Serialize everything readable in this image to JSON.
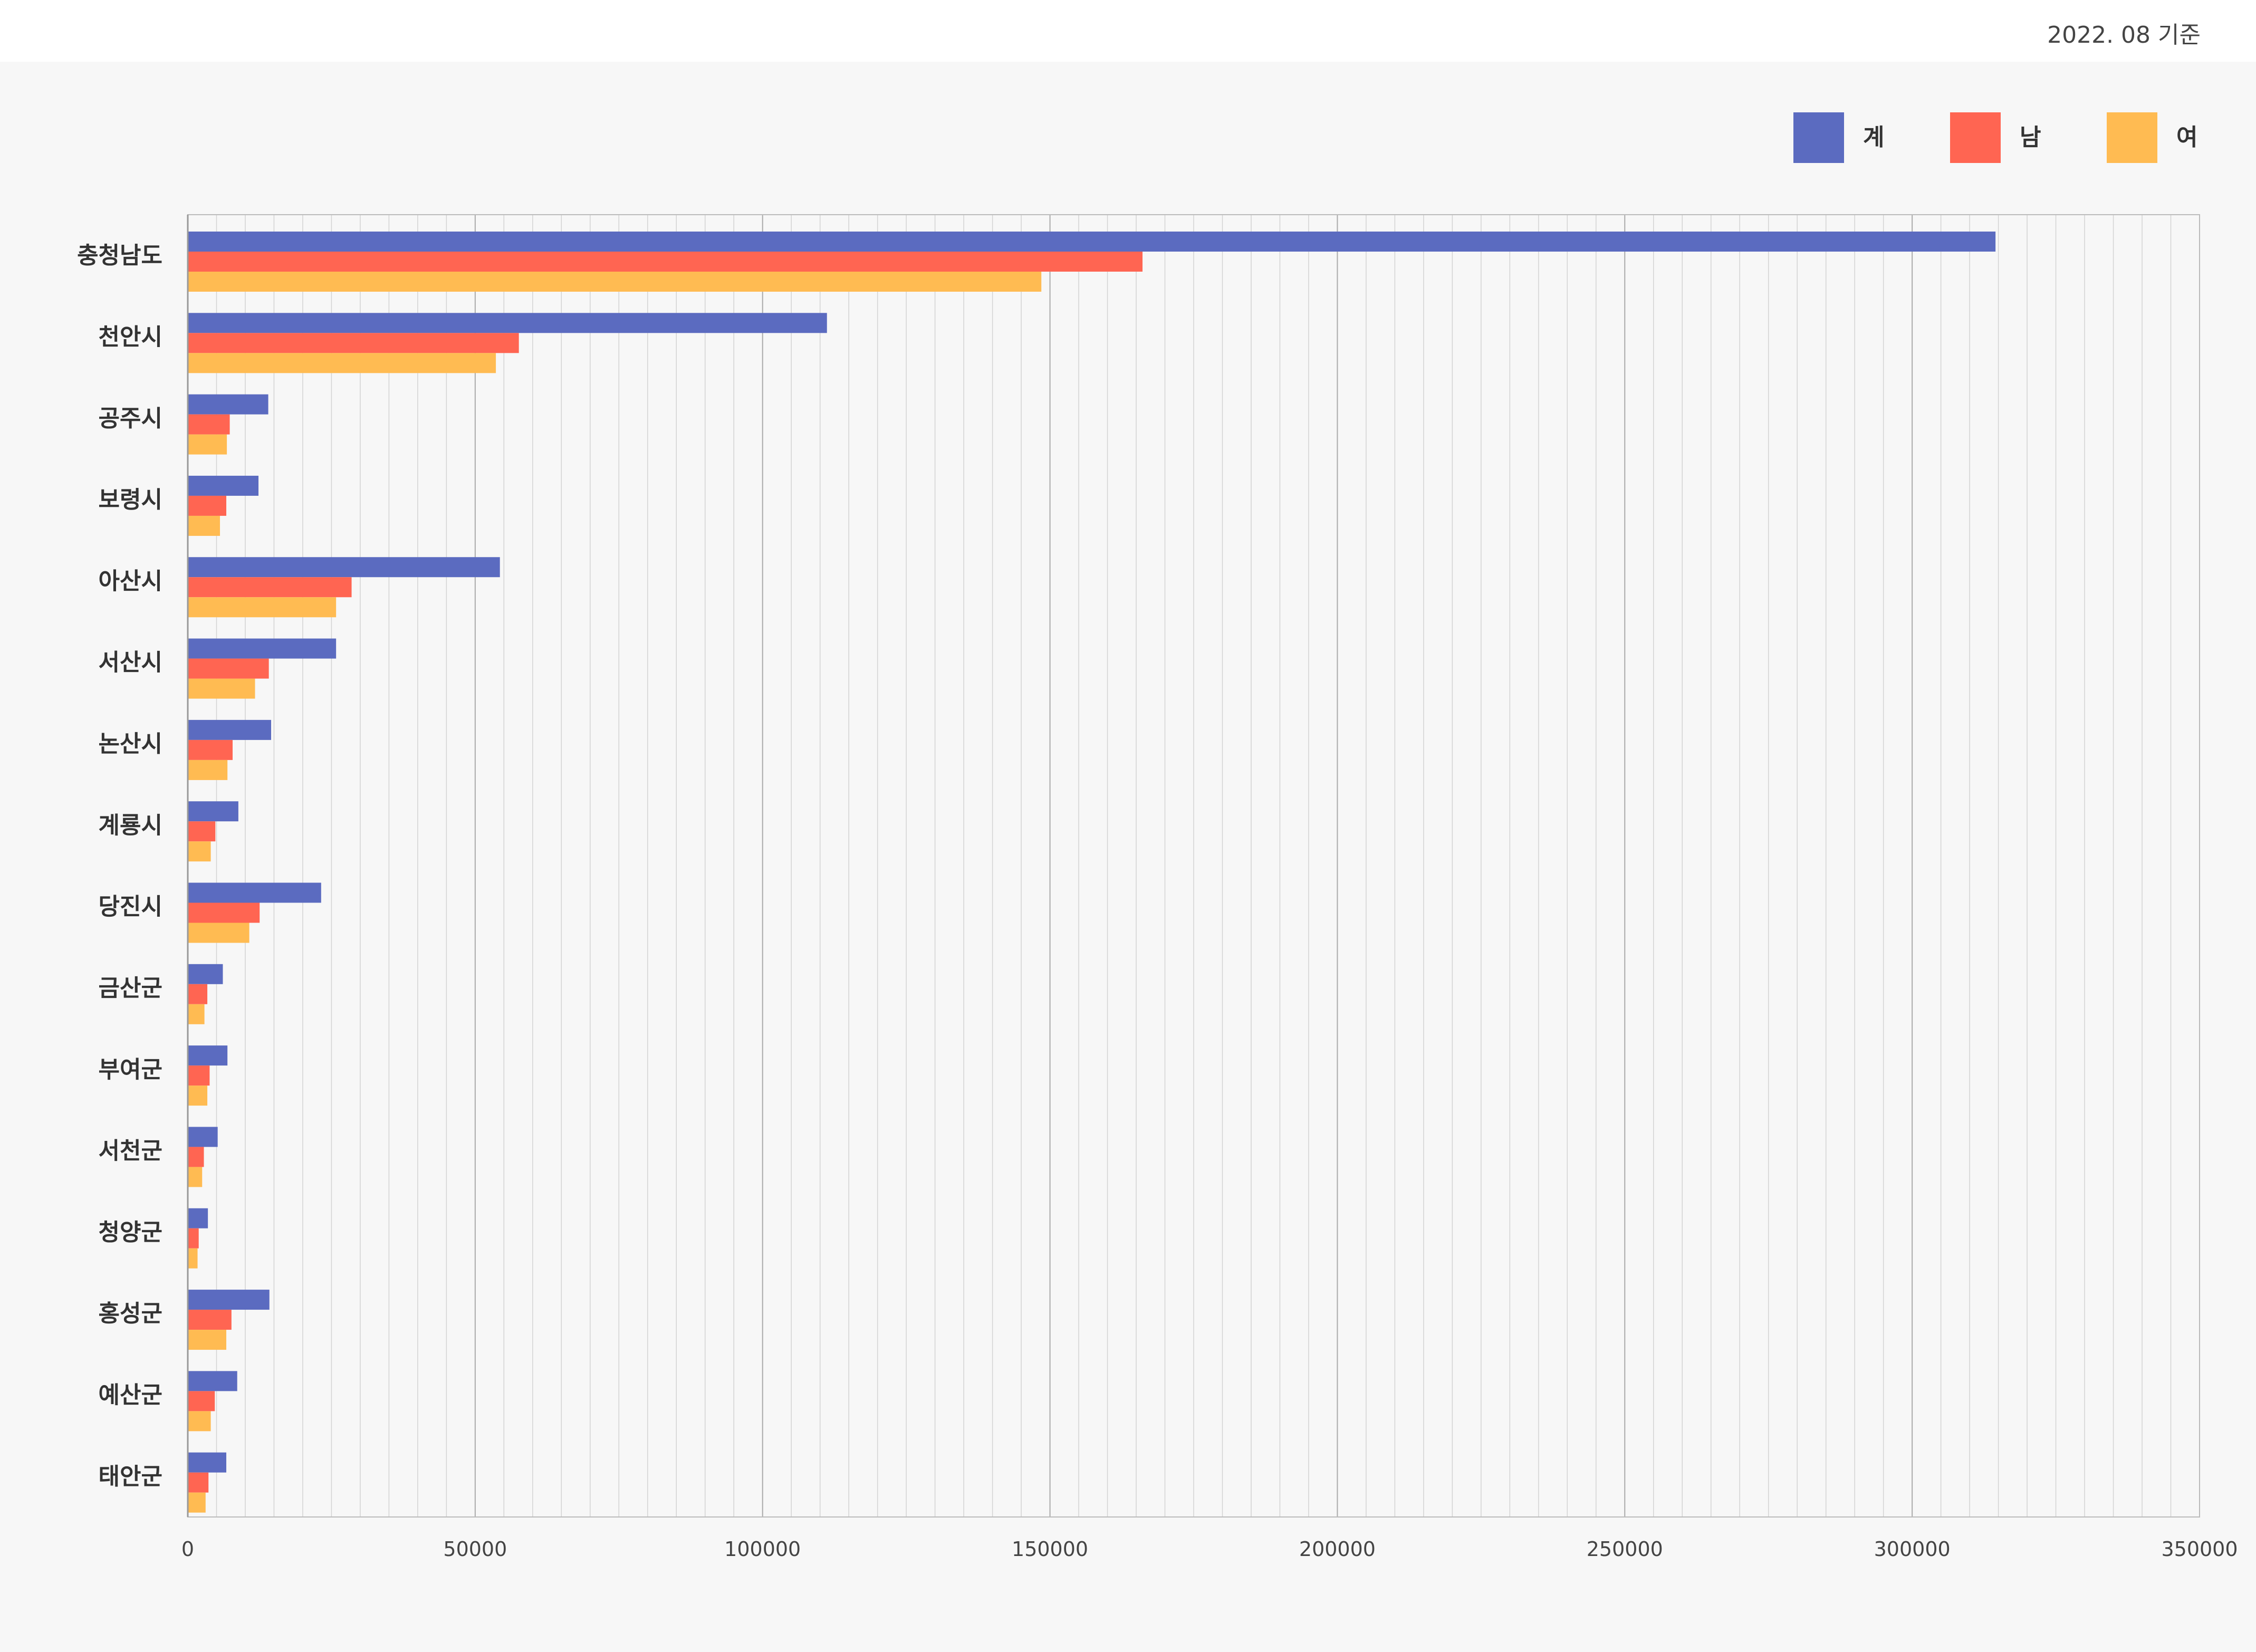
{
  "header": {
    "as_of": "2022. 08 기준"
  },
  "chart_data": {
    "type": "bar",
    "orientation": "horizontal",
    "title": "",
    "xlabel": "",
    "ylabel": "",
    "xlim": [
      0,
      350000
    ],
    "ticks": [
      "0",
      "50000",
      "100000",
      "150000",
      "200000",
      "250000",
      "300000",
      "350000"
    ],
    "tick_values": [
      0,
      50000,
      100000,
      150000,
      200000,
      250000,
      300000,
      350000
    ],
    "grid": true,
    "legend_position": "top-right",
    "categories": [
      "충청남도",
      "천안시",
      "공주시",
      "보령시",
      "아산시",
      "서산시",
      "논산시",
      "계룡시",
      "당진시",
      "금산군",
      "부여군",
      "서천군",
      "청양군",
      "홍성군",
      "예산군",
      "태안군"
    ],
    "series": [
      {
        "name": "계",
        "color": "#5b6bc0",
        "values": [
          314500,
          111200,
          14000,
          12300,
          54300,
          25800,
          14500,
          8800,
          23200,
          6100,
          6900,
          5200,
          3500,
          14200,
          8600,
          6700
        ]
      },
      {
        "name": "남",
        "color": "#ff6552",
        "values": [
          166100,
          57600,
          7300,
          6700,
          28500,
          14100,
          7800,
          4800,
          12500,
          3400,
          3800,
          2800,
          1900,
          7600,
          4700,
          3600
        ]
      },
      {
        "name": "여",
        "color": "#ffbb52",
        "values": [
          148500,
          53600,
          6800,
          5600,
          25800,
          11700,
          6900,
          4000,
          10700,
          2900,
          3400,
          2500,
          1700,
          6700,
          4000,
          3100
        ]
      }
    ]
  }
}
